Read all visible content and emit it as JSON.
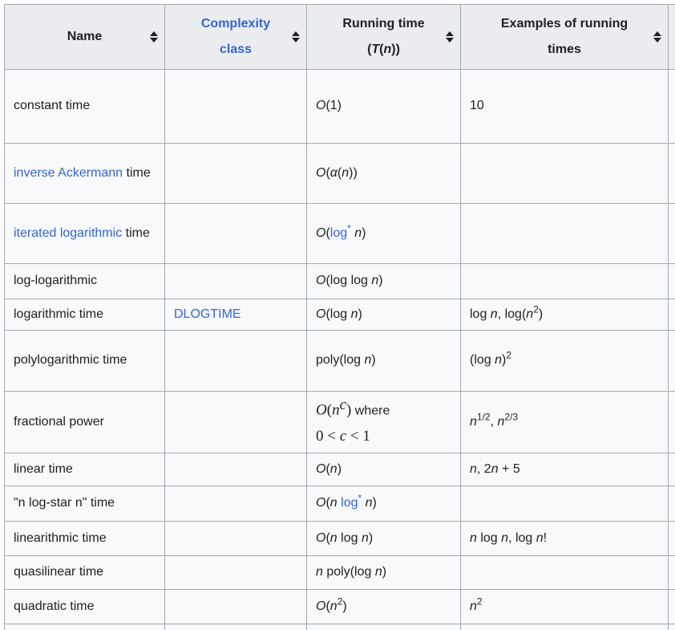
{
  "colors": {
    "header_bg": "#eaecf0",
    "row_bg": "#f8f9fa",
    "border": "#a2a9b1",
    "link": "#3366cc",
    "text": "#202122",
    "page_bg": "#ffffff"
  },
  "table": {
    "columns": [
      {
        "name": "name",
        "sortable": true,
        "label": [
          {
            "t": "Name"
          }
        ]
      },
      {
        "name": "complexity-class",
        "sortable": true,
        "label": [
          {
            "t": "Complexity",
            "l": 1
          },
          {
            "br": 1
          },
          {
            "t": "class",
            "l": 1
          }
        ]
      },
      {
        "name": "running-time",
        "sortable": true,
        "label": [
          {
            "t": "Running time"
          },
          {
            "br": 1
          },
          {
            "t": "("
          },
          {
            "t": "T",
            "i": 1
          },
          {
            "t": "("
          },
          {
            "t": "n",
            "i": 1
          },
          {
            "t": "))"
          }
        ]
      },
      {
        "name": "examples",
        "sortable": true,
        "label": [
          {
            "t": "Examples of running"
          },
          {
            "br": 1
          },
          {
            "t": "times"
          }
        ]
      },
      {
        "name": "cutoff-column",
        "sortable": false,
        "label": []
      }
    ],
    "rows": [
      {
        "name": [
          {
            "t": "constant time"
          }
        ],
        "cls": [],
        "run": [
          {
            "t": "O",
            "i": 1
          },
          {
            "t": "(1)"
          }
        ],
        "ex": [
          {
            "t": "10"
          }
        ]
      },
      {
        "name": [
          {
            "t": "inverse Ackermann",
            "l": 1
          },
          {
            "t": " time"
          }
        ],
        "cls": [],
        "run": [
          {
            "t": "O",
            "i": 1
          },
          {
            "t": "("
          },
          {
            "t": "α",
            "i": 1
          },
          {
            "t": "("
          },
          {
            "t": "n",
            "i": 1
          },
          {
            "t": "))"
          }
        ],
        "ex": []
      },
      {
        "name": [
          {
            "t": "iterated logarithmic",
            "l": 1
          },
          {
            "t": " time"
          }
        ],
        "cls": [],
        "run": [
          {
            "t": "O",
            "i": 1
          },
          {
            "t": "("
          },
          {
            "t": "log",
            "l": 1
          },
          {
            "t": "*",
            "l": 1,
            "u": 1
          },
          {
            "t": " "
          },
          {
            "t": "n",
            "i": 1
          },
          {
            "t": ")"
          }
        ],
        "ex": []
      },
      {
        "name": [
          {
            "t": "log-logarithmic"
          }
        ],
        "cls": [],
        "run": [
          {
            "t": "O",
            "i": 1
          },
          {
            "t": "(log log "
          },
          {
            "t": "n",
            "i": 1
          },
          {
            "t": ")"
          }
        ],
        "ex": []
      },
      {
        "name": [
          {
            "t": "logarithmic time"
          }
        ],
        "cls": [
          {
            "t": "DLOGTIME",
            "l": 1
          }
        ],
        "run": [
          {
            "t": "O",
            "i": 1
          },
          {
            "t": "(log "
          },
          {
            "t": "n",
            "i": 1
          },
          {
            "t": ")"
          }
        ],
        "ex": [
          {
            "t": "log "
          },
          {
            "t": "n",
            "i": 1
          },
          {
            "t": ", log("
          },
          {
            "t": "n",
            "i": 1
          },
          {
            "t": "2",
            "u": 1
          },
          {
            "t": ")"
          }
        ]
      },
      {
        "name": [
          {
            "t": "polylogarithmic time"
          }
        ],
        "cls": [],
        "run": [
          {
            "t": "poly(log "
          },
          {
            "t": "n",
            "i": 1
          },
          {
            "t": ")"
          }
        ],
        "ex": [
          {
            "t": "(log "
          },
          {
            "t": "n",
            "i": 1
          },
          {
            "t": ")"
          },
          {
            "t": "2",
            "u": 1
          }
        ]
      },
      {
        "name": [
          {
            "t": "fractional power"
          }
        ],
        "cls": [],
        "run": [
          {
            "t": "O",
            "f": 1,
            "i": 1
          },
          {
            "t": "(",
            "f": 1
          },
          {
            "t": "n",
            "f": 1,
            "i": 1
          },
          {
            "t": "c",
            "f": 1,
            "i": 1,
            "u": 1
          },
          {
            "t": ")",
            "f": 1
          },
          {
            "t": " where"
          },
          {
            "br": 1
          },
          {
            "t": "0 < ",
            "f": 1
          },
          {
            "t": "c",
            "f": 1,
            "i": 1
          },
          {
            "t": " < 1",
            "f": 1
          }
        ],
        "ex": [
          {
            "t": "n",
            "i": 1
          },
          {
            "t": "1/2",
            "u": 1
          },
          {
            "t": ", "
          },
          {
            "t": "n",
            "i": 1
          },
          {
            "t": "2/3",
            "u": 1
          }
        ]
      },
      {
        "name": [
          {
            "t": "linear time"
          }
        ],
        "cls": [],
        "run": [
          {
            "t": "O",
            "i": 1
          },
          {
            "t": "("
          },
          {
            "t": "n",
            "i": 1
          },
          {
            "t": ")"
          }
        ],
        "ex": [
          {
            "t": "n",
            "i": 1
          },
          {
            "t": ", 2"
          },
          {
            "t": "n",
            "i": 1
          },
          {
            "t": " + 5"
          }
        ]
      },
      {
        "name": [
          {
            "t": "\"n log-star n\" time"
          }
        ],
        "cls": [],
        "run": [
          {
            "t": "O",
            "i": 1
          },
          {
            "t": "("
          },
          {
            "t": "n",
            "i": 1
          },
          {
            "t": " "
          },
          {
            "t": "log",
            "l": 1
          },
          {
            "t": "*",
            "l": 1,
            "u": 1
          },
          {
            "t": " "
          },
          {
            "t": "n",
            "i": 1
          },
          {
            "t": ")"
          }
        ],
        "ex": []
      },
      {
        "name": [
          {
            "t": "linearithmic time"
          }
        ],
        "cls": [],
        "run": [
          {
            "t": "O",
            "i": 1
          },
          {
            "t": "("
          },
          {
            "t": "n",
            "i": 1
          },
          {
            "t": " log "
          },
          {
            "t": "n",
            "i": 1
          },
          {
            "t": ")"
          }
        ],
        "ex": [
          {
            "t": "n",
            "i": 1
          },
          {
            "t": " log "
          },
          {
            "t": "n",
            "i": 1
          },
          {
            "t": ", log "
          },
          {
            "t": "n",
            "i": 1
          },
          {
            "t": "!"
          }
        ]
      },
      {
        "name": [
          {
            "t": "quasilinear time"
          }
        ],
        "cls": [],
        "run": [
          {
            "t": "n",
            "i": 1
          },
          {
            "t": " poly(log "
          },
          {
            "t": "n",
            "i": 1
          },
          {
            "t": ")"
          }
        ],
        "ex": []
      },
      {
        "name": [
          {
            "t": "quadratic time"
          }
        ],
        "cls": [],
        "run": [
          {
            "t": "O",
            "i": 1
          },
          {
            "t": "("
          },
          {
            "t": "n",
            "i": 1
          },
          {
            "t": "2",
            "u": 1
          },
          {
            "t": ")"
          }
        ],
        "ex": [
          {
            "t": "n",
            "i": 1
          },
          {
            "t": "2",
            "u": 1
          }
        ]
      },
      {
        "name": [],
        "cls": [],
        "run": [],
        "ex": []
      }
    ]
  }
}
